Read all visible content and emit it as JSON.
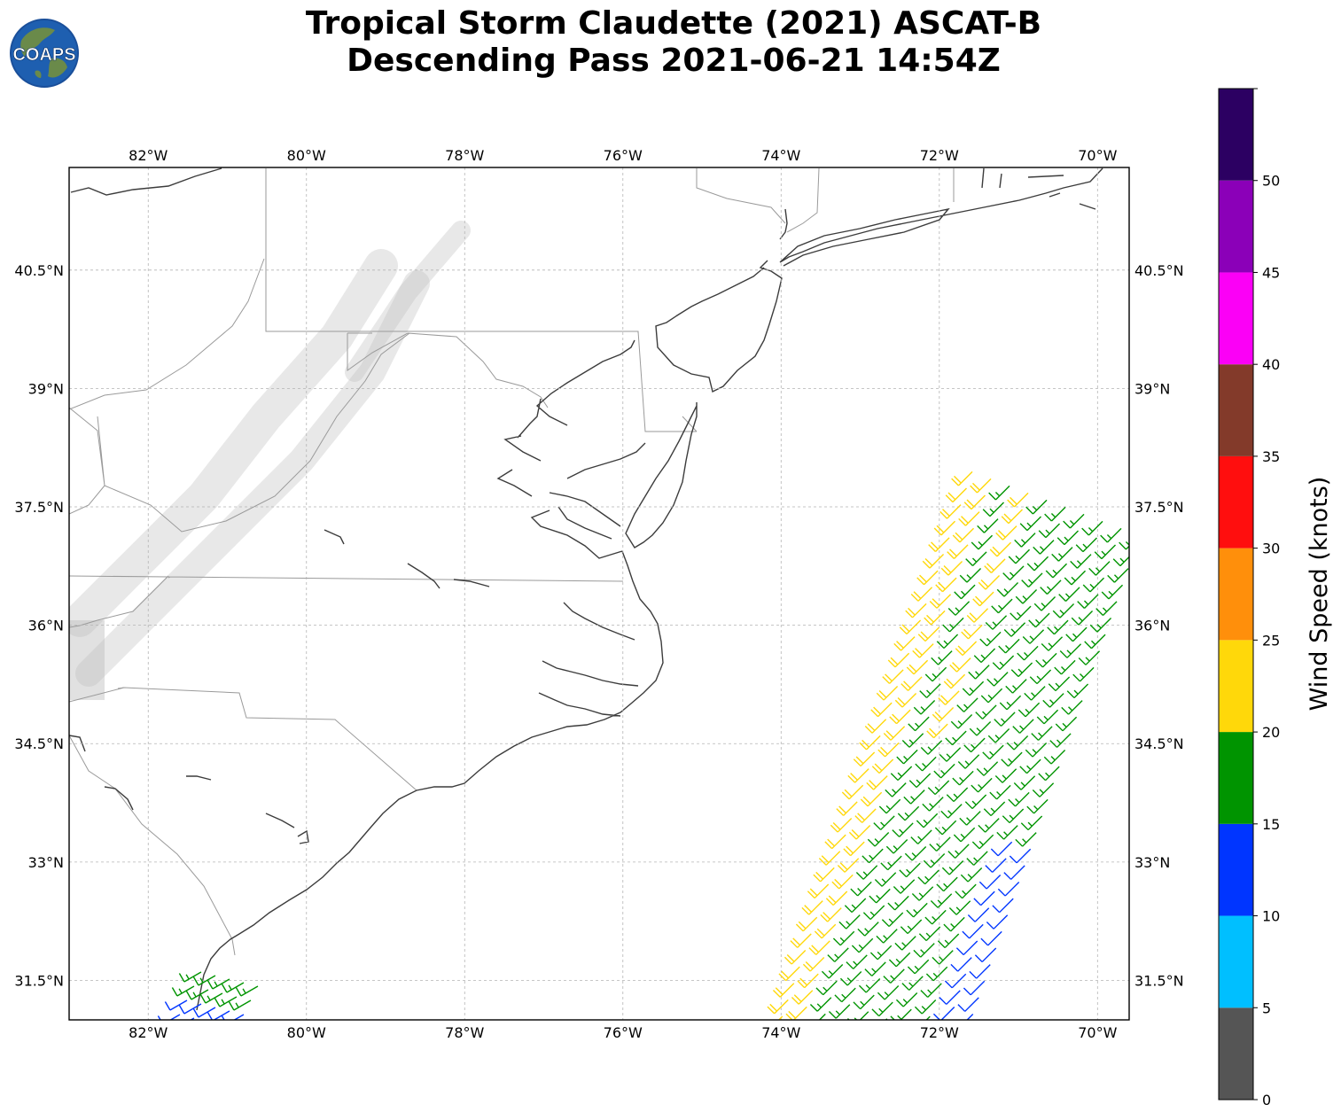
{
  "title": {
    "line1": "Tropical Storm Claudette (2021) ASCAT-B",
    "line2": "Descending Pass 2021-06-21 14:54Z"
  },
  "logo": {
    "text": "COAPS",
    "colors": {
      "ocean": "#1e5fb0",
      "land": "#6a8a4a",
      "ring": "#1a4f9a"
    }
  },
  "map": {
    "lon_range": [
      -83.0,
      -69.6
    ],
    "lat_range": [
      31.0,
      41.8
    ],
    "lon_ticks": [
      {
        "value": -82,
        "label": "82°W"
      },
      {
        "value": -80,
        "label": "80°W"
      },
      {
        "value": -78,
        "label": "78°W"
      },
      {
        "value": -76,
        "label": "76°W"
      },
      {
        "value": -74,
        "label": "74°W"
      },
      {
        "value": -72,
        "label": "72°W"
      },
      {
        "value": -70,
        "label": "70°W"
      }
    ],
    "lat_ticks": [
      {
        "value": 40.5,
        "label": "40.5°N"
      },
      {
        "value": 39,
        "label": "39°N"
      },
      {
        "value": 37.5,
        "label": "37.5°N"
      },
      {
        "value": 36,
        "label": "36°N"
      },
      {
        "value": 34.5,
        "label": "34.5°N"
      },
      {
        "value": 33,
        "label": "33°N"
      },
      {
        "value": 31.5,
        "label": "31.5°N"
      }
    ],
    "grid": true,
    "colors": {
      "coast": "#3c3c3c",
      "border": "#9a9a9a",
      "grid": "#b4b4b4",
      "terrain": "#bdbdbd"
    }
  },
  "colorbar": {
    "label": "Wind Speed (knots)",
    "ticks": [
      "0",
      "5",
      "10",
      "15",
      "20",
      "25",
      "30",
      "35",
      "40",
      "45",
      "50"
    ],
    "bins": [
      {
        "min": 0,
        "max": 5,
        "color": "#555555"
      },
      {
        "min": 5,
        "max": 10,
        "color": "#00bfff"
      },
      {
        "min": 10,
        "max": 15,
        "color": "#0035ff"
      },
      {
        "min": 15,
        "max": 20,
        "color": "#009400"
      },
      {
        "min": 20,
        "max": 25,
        "color": "#ffd80a"
      },
      {
        "min": 25,
        "max": 30,
        "color": "#ff8f0b"
      },
      {
        "min": 30,
        "max": 35,
        "color": "#ff0e0e"
      },
      {
        "min": 35,
        "max": 40,
        "color": "#833a2a"
      },
      {
        "min": 40,
        "max": 45,
        "color": "#fb00f6"
      },
      {
        "min": 45,
        "max": 50,
        "color": "#8b00b8"
      },
      {
        "min": 50,
        "max": 55,
        "color": "#2c0062"
      }
    ]
  },
  "wind_swaths": [
    {
      "name": "east",
      "start": [
        -72.0,
        31.0
      ],
      "end": [
        -69.6,
        37.9
      ],
      "width_deg": 2.6,
      "rows": 34,
      "cols": 10,
      "from_direction_deg": 225,
      "speed_bands_kt": [
        {
          "zone": "west edge",
          "speed": 22
        },
        {
          "zone": "middle",
          "speed": 17
        },
        {
          "zone": "east edge south",
          "speed": 12
        }
      ]
    },
    {
      "name": "southwest",
      "start": [
        -81.6,
        31.0
      ],
      "end": [
        -80.2,
        31.8
      ],
      "rows": 4,
      "cols": 5,
      "from_direction_deg": 240,
      "speed_bands_kt": [
        {
          "zone": "north",
          "speed": 17
        },
        {
          "zone": "south",
          "speed": 12
        }
      ]
    }
  ]
}
